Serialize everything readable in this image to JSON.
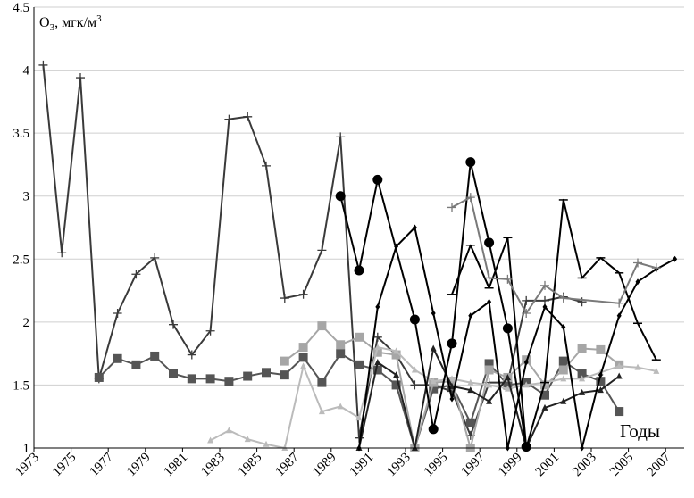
{
  "chart_data": {
    "type": "line",
    "title": "",
    "ylabel": "O₃, мгк/м³",
    "xlabel": "Годы",
    "xlim": [
      1973,
      2008
    ],
    "ylim": [
      1,
      4.5
    ],
    "x_ticks": [
      1973,
      1975,
      1977,
      1979,
      1981,
      1983,
      1985,
      1987,
      1989,
      1991,
      1993,
      1995,
      1997,
      1999,
      2001,
      2003,
      2005,
      2007
    ],
    "y_ticks": [
      1,
      1.5,
      2,
      2.5,
      3,
      3.5,
      4,
      4.5
    ],
    "y_tick_labels": [
      "1",
      "1.5",
      "2",
      "2.5",
      "3",
      "3.5",
      "4",
      "4.5"
    ],
    "grid": "horizontal",
    "legend": "none",
    "series": [
      {
        "color": "#3a3a3a",
        "marker": "plus",
        "points": [
          [
            1973.5,
            4.04
          ],
          [
            1974.5,
            2.55
          ],
          [
            1975.5,
            3.94
          ],
          [
            1976.5,
            1.55
          ],
          [
            1977.5,
            2.07
          ],
          [
            1978.5,
            2.38
          ],
          [
            1979.5,
            2.51
          ],
          [
            1980.5,
            1.98
          ],
          [
            1981.5,
            1.74
          ],
          [
            1982.5,
            1.93
          ],
          [
            1983.5,
            3.61
          ],
          [
            1984.5,
            3.63
          ],
          [
            1985.5,
            3.24
          ],
          [
            1986.5,
            2.19
          ],
          [
            1987.5,
            2.22
          ],
          [
            1988.5,
            2.57
          ],
          [
            1989.5,
            3.47
          ],
          [
            1990.5,
            1.08
          ],
          [
            1991.5,
            1.88
          ],
          [
            1992.5,
            1.74
          ],
          [
            1993.5,
            1.5
          ],
          [
            1994.5,
            1.5
          ],
          [
            1995.5,
            1.45
          ],
          [
            1996.5,
            1.1
          ],
          [
            1997.5,
            1.52
          ],
          [
            1998.5,
            1.52
          ],
          [
            1999.5,
            2.17
          ],
          [
            2000.5,
            2.17
          ],
          [
            2001.5,
            2.2
          ],
          [
            2002.5,
            2.16
          ]
        ]
      },
      {
        "color": "#555555",
        "marker": "square",
        "points": [
          [
            1976.5,
            1.56
          ],
          [
            1977.5,
            1.71
          ],
          [
            1978.5,
            1.66
          ],
          [
            1979.5,
            1.73
          ],
          [
            1980.5,
            1.59
          ],
          [
            1981.5,
            1.55
          ],
          [
            1982.5,
            1.55
          ],
          [
            1983.5,
            1.53
          ],
          [
            1984.5,
            1.57
          ],
          [
            1985.5,
            1.6
          ],
          [
            1986.5,
            1.58
          ],
          [
            1987.5,
            1.72
          ],
          [
            1988.5,
            1.52
          ],
          [
            1989.5,
            1.75
          ],
          [
            1990.5,
            1.66
          ],
          [
            1991.5,
            1.62
          ],
          [
            1992.5,
            1.5
          ],
          [
            1993.5,
            1.0
          ],
          [
            1994.5,
            1.47
          ],
          [
            1995.5,
            1.5
          ],
          [
            1996.5,
            1.2
          ],
          [
            1997.5,
            1.67
          ],
          [
            1998.5,
            1.5
          ],
          [
            1999.5,
            1.52
          ],
          [
            2000.5,
            1.42
          ],
          [
            2001.5,
            1.69
          ],
          [
            2002.5,
            1.59
          ],
          [
            2003.5,
            1.53
          ],
          [
            2004.5,
            1.29
          ]
        ]
      },
      {
        "color": "#a6a6a6",
        "marker": "square",
        "points": [
          [
            1986.5,
            1.69
          ],
          [
            1987.5,
            1.8
          ],
          [
            1988.5,
            1.97
          ],
          [
            1989.5,
            1.82
          ],
          [
            1990.5,
            1.88
          ],
          [
            1991.5,
            1.76
          ],
          [
            1992.5,
            1.74
          ],
          [
            1993.5,
            1.0
          ],
          [
            1994.5,
            1.52
          ],
          [
            1995.5,
            1.53
          ],
          [
            1996.5,
            1.0
          ],
          [
            1997.5,
            1.62
          ],
          [
            1998.5,
            1.56
          ],
          [
            1999.5,
            1.7
          ],
          [
            2000.5,
            1.5
          ],
          [
            2001.5,
            1.62
          ],
          [
            2002.5,
            1.79
          ],
          [
            2003.5,
            1.78
          ],
          [
            2004.5,
            1.66
          ]
        ]
      },
      {
        "color": "#bbbbbb",
        "marker": "triangle",
        "points": [
          [
            1982.5,
            1.06
          ],
          [
            1983.5,
            1.14
          ],
          [
            1984.5,
            1.07
          ],
          [
            1985.5,
            1.03
          ],
          [
            1986.5,
            1.0
          ],
          [
            1987.5,
            1.65
          ],
          [
            1988.5,
            1.29
          ],
          [
            1989.5,
            1.33
          ],
          [
            1990.5,
            1.24
          ],
          [
            1991.5,
            1.8
          ],
          [
            1992.5,
            1.77
          ],
          [
            1993.5,
            1.62
          ],
          [
            1994.5,
            1.53
          ],
          [
            1995.5,
            1.55
          ],
          [
            1996.5,
            1.52
          ],
          [
            1997.5,
            1.5
          ],
          [
            1998.5,
            1.47
          ],
          [
            1999.5,
            1.5
          ],
          [
            2000.5,
            1.52
          ],
          [
            2001.5,
            1.55
          ],
          [
            2002.5,
            1.55
          ],
          [
            2003.5,
            1.6
          ],
          [
            2004.5,
            1.65
          ],
          [
            2005.5,
            1.64
          ],
          [
            2006.5,
            1.61
          ]
        ]
      },
      {
        "color": "#222222",
        "marker": "triangle",
        "points": [
          [
            1990.5,
            1.0
          ],
          [
            1991.5,
            1.68
          ],
          [
            1992.5,
            1.58
          ],
          [
            1993.5,
            1.0
          ],
          [
            1994.5,
            1.79
          ],
          [
            1995.5,
            1.49
          ],
          [
            1996.5,
            1.46
          ],
          [
            1997.5,
            1.37
          ],
          [
            1998.5,
            1.56
          ],
          [
            1999.5,
            1.0
          ],
          [
            2000.5,
            1.32
          ],
          [
            2001.5,
            1.37
          ],
          [
            2002.5,
            1.44
          ],
          [
            2003.5,
            1.46
          ],
          [
            2004.5,
            1.57
          ]
        ]
      },
      {
        "color": "#000000",
        "marker": "circle",
        "points": [
          [
            1989.5,
            3.0
          ],
          [
            1990.5,
            2.41
          ],
          [
            1991.5,
            3.13
          ],
          [
            1993.5,
            2.02
          ],
          [
            1994.5,
            1.15
          ],
          [
            1995.5,
            1.83
          ],
          [
            1996.5,
            3.27
          ],
          [
            1997.5,
            2.63
          ],
          [
            1998.5,
            1.95
          ],
          [
            1999.5,
            1.01
          ]
        ]
      },
      {
        "color": "#000000",
        "marker": "diamond",
        "points": [
          [
            1990.5,
            1.0
          ],
          [
            1991.5,
            2.12
          ],
          [
            1992.5,
            2.6
          ],
          [
            1993.5,
            2.75
          ],
          [
            1994.5,
            2.07
          ],
          [
            1995.5,
            1.39
          ],
          [
            1996.5,
            2.05
          ],
          [
            1997.5,
            2.16
          ],
          [
            1998.5,
            1.0
          ],
          [
            1999.5,
            1.68
          ],
          [
            2000.5,
            2.12
          ],
          [
            2001.5,
            1.96
          ],
          [
            2002.5,
            1.0
          ],
          [
            2003.5,
            1.58
          ],
          [
            2004.5,
            2.05
          ],
          [
            2005.5,
            2.32
          ],
          [
            2006.5,
            2.42
          ],
          [
            2007.5,
            2.5
          ]
        ]
      },
      {
        "color": "#000000",
        "marker": "dash",
        "points": [
          [
            1995.5,
            2.22
          ],
          [
            1996.5,
            2.61
          ],
          [
            1997.5,
            2.27
          ],
          [
            1998.5,
            2.67
          ],
          [
            1999.5,
            1.0
          ],
          [
            2000.5,
            1.52
          ],
          [
            2001.5,
            2.97
          ],
          [
            2002.5,
            2.35
          ],
          [
            2003.5,
            2.51
          ],
          [
            2004.5,
            2.39
          ],
          [
            2005.5,
            1.99
          ],
          [
            2006.5,
            1.7
          ]
        ]
      },
      {
        "color": "#7a7a7a",
        "marker": "plus",
        "points": [
          [
            1995.5,
            2.91
          ],
          [
            1996.5,
            2.99
          ],
          [
            1997.5,
            2.35
          ],
          [
            1998.5,
            2.34
          ],
          [
            1999.5,
            2.07
          ],
          [
            2000.5,
            2.29
          ],
          [
            2001.5,
            2.19
          ],
          [
            2004.5,
            2.15
          ],
          [
            2005.5,
            2.47
          ],
          [
            2006.5,
            2.43
          ]
        ]
      }
    ]
  }
}
